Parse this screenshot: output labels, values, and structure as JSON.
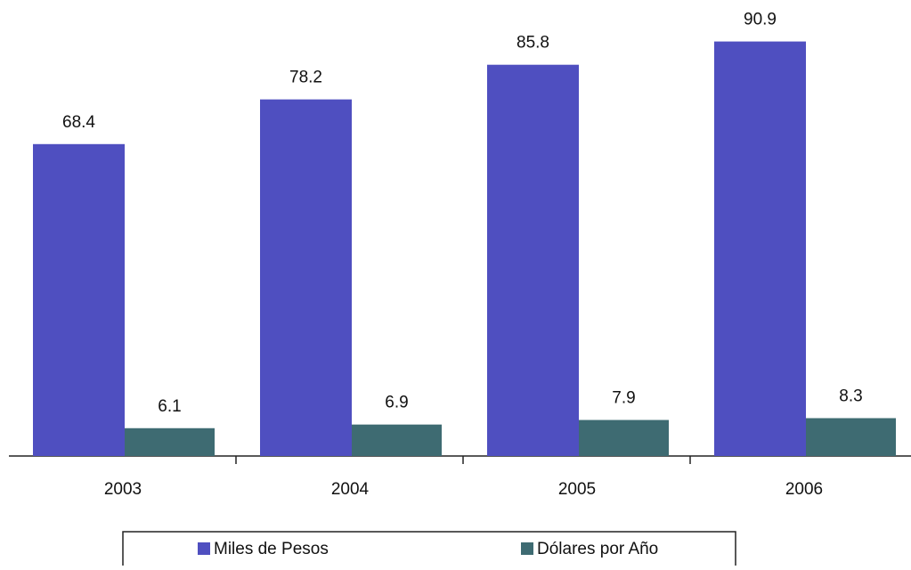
{
  "chart_data": {
    "type": "bar",
    "categories": [
      "2003",
      "2004",
      "2005",
      "2006"
    ],
    "series": [
      {
        "name": "Miles de Pesos",
        "color": "#4f4fc0",
        "values": [
          68.4,
          78.2,
          85.8,
          90.9
        ]
      },
      {
        "name": "Dólares por Año",
        "color": "#3e6b72",
        "values": [
          6.1,
          6.9,
          7.9,
          8.3
        ]
      }
    ],
    "ylim": [
      0,
      100
    ]
  }
}
